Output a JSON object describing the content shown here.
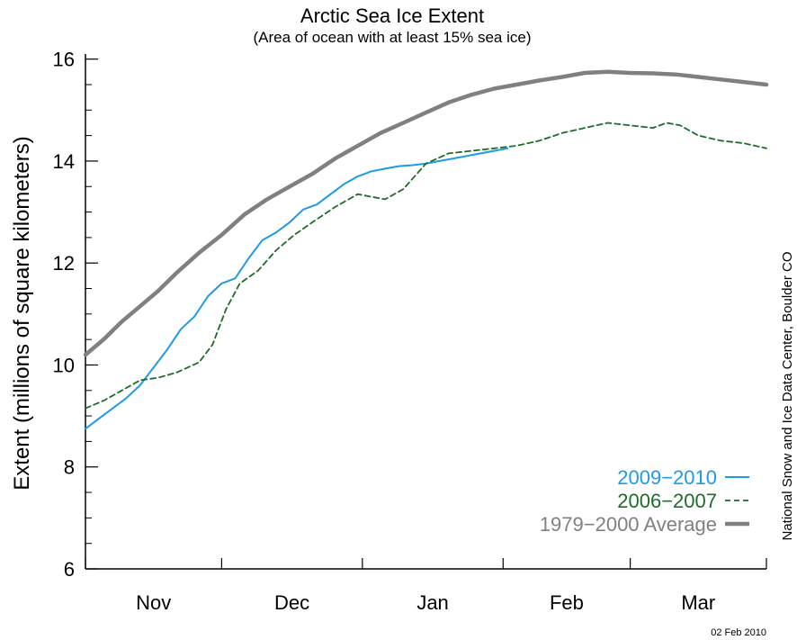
{
  "chart_data": {
    "type": "line",
    "title": "Arctic Sea Ice Extent",
    "subtitle": "(Area of ocean with at least 15% sea ice)",
    "ylabel": "Extent (millions of square kilometers)",
    "xlabel": "",
    "ylim": [
      6,
      16.1
    ],
    "yticks": [
      6,
      8,
      10,
      12,
      14,
      16
    ],
    "xlim": [
      0,
      150
    ],
    "month_ticks": [
      0,
      30,
      61,
      92,
      120,
      150
    ],
    "months": [
      {
        "label": "Nov",
        "x": 15
      },
      {
        "label": "Dec",
        "x": 45.5
      },
      {
        "label": "Jan",
        "x": 76.5
      },
      {
        "label": "Feb",
        "x": 106
      },
      {
        "label": "Mar",
        "x": 135
      }
    ],
    "grid": false,
    "legend_position": "bottom-right",
    "series": [
      {
        "name": "1979−2000 Average",
        "color": "#808080",
        "style": "solid-thick",
        "x": [
          0,
          4,
          8,
          12,
          16,
          20,
          25,
          30,
          35,
          40,
          45,
          50,
          55,
          60,
          65,
          70,
          75,
          80,
          85,
          90,
          95,
          100,
          105,
          110,
          115,
          120,
          125,
          130,
          135,
          140,
          145,
          150
        ],
        "y": [
          10.2,
          10.5,
          10.85,
          11.15,
          11.45,
          11.8,
          12.2,
          12.55,
          12.95,
          13.25,
          13.5,
          13.75,
          14.05,
          14.3,
          14.55,
          14.75,
          14.95,
          15.15,
          15.3,
          15.42,
          15.5,
          15.58,
          15.65,
          15.73,
          15.75,
          15.73,
          15.72,
          15.7,
          15.65,
          15.6,
          15.55,
          15.5
        ]
      },
      {
        "name": "2009−2010",
        "color": "#1e9ae6",
        "style": "solid",
        "x": [
          0,
          3,
          6,
          9,
          12,
          15,
          18,
          21,
          24,
          27,
          30,
          33,
          36,
          39,
          42,
          45,
          48,
          51,
          54,
          57,
          60,
          63,
          66,
          69,
          72,
          75,
          78,
          81,
          84,
          87,
          90,
          93
        ],
        "y": [
          8.75,
          8.95,
          9.15,
          9.35,
          9.6,
          9.95,
          10.3,
          10.7,
          10.95,
          11.35,
          11.6,
          11.7,
          12.1,
          12.45,
          12.6,
          12.8,
          13.05,
          13.15,
          13.35,
          13.55,
          13.7,
          13.8,
          13.85,
          13.9,
          13.92,
          13.95,
          14.0,
          14.05,
          14.1,
          14.15,
          14.2,
          14.25
        ]
      },
      {
        "name": "2006−2007",
        "color": "#1f6b2a",
        "style": "dashed",
        "x": [
          0,
          4,
          8,
          12,
          16,
          20,
          25,
          28,
          31,
          34,
          38,
          42,
          46,
          50,
          55,
          60,
          63,
          66,
          70,
          75,
          80,
          85,
          90,
          95,
          100,
          105,
          110,
          115,
          120,
          125,
          128,
          131,
          135,
          140,
          145,
          150
        ],
        "y": [
          9.15,
          9.3,
          9.5,
          9.7,
          9.75,
          9.85,
          10.05,
          10.4,
          11.1,
          11.6,
          11.85,
          12.25,
          12.55,
          12.8,
          13.1,
          13.35,
          13.3,
          13.25,
          13.45,
          13.95,
          14.15,
          14.2,
          14.25,
          14.3,
          14.4,
          14.55,
          14.65,
          14.75,
          14.7,
          14.65,
          14.75,
          14.7,
          14.5,
          14.4,
          14.35,
          14.25
        ]
      }
    ]
  },
  "credit": "National Snow and Ice Data Center, Boulder CO",
  "date_stamp": "02 Feb 2010"
}
